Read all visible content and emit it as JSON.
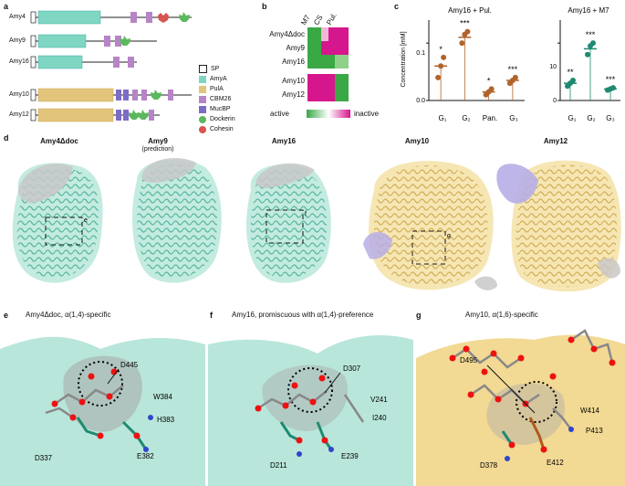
{
  "panels": {
    "a": "a",
    "b": "b",
    "c": "c",
    "d": "d",
    "e": "e",
    "f": "f",
    "g": "g"
  },
  "panel_a": {
    "proteins": [
      "Amy4",
      "Amy9",
      "Amy16",
      "Amy10",
      "Amy12"
    ],
    "legend": [
      {
        "label": "SP",
        "color": "#ffffff"
      },
      {
        "label": "AmyA",
        "color": "#7fd6c2"
      },
      {
        "label": "PulA",
        "color": "#e2c57a"
      },
      {
        "label": "CBM26",
        "color": "#b784c7"
      },
      {
        "label": "MucBP",
        "color": "#7e6cc4"
      },
      {
        "label": "Dockerin",
        "color": "#5cb85c"
      },
      {
        "label": "Cohesin",
        "color": "#d9534f"
      }
    ]
  },
  "panel_b": {
    "columns": [
      "M7",
      "CS",
      "Pul."
    ],
    "rows_top": [
      "Amy4Δdoc",
      "Amy9",
      "Amy16"
    ],
    "rows_bottom": [
      "Amy10",
      "Amy12"
    ],
    "scale_left": "active",
    "scale_right": "inactive"
  },
  "chart_data": [
    {
      "type": "bar",
      "title": "Amy16 + Pul.",
      "ylabel": "Concentration [mM]",
      "categories": [
        "G1",
        "G2",
        "Pan.",
        "G3"
      ],
      "values": [
        0.06,
        0.11,
        0.015,
        0.035
      ],
      "points": [
        [
          0.04,
          0.06,
          0.075
        ],
        [
          0.1,
          0.115,
          0.12
        ],
        [
          0.01,
          0.015,
          0.02
        ],
        [
          0.03,
          0.035,
          0.04
        ]
      ],
      "significance": [
        "*",
        "***",
        "*",
        "***"
      ],
      "yticks": [
        0.0,
        0.1
      ],
      "ylim": [
        0,
        0.14
      ],
      "color": "#b0642a"
    },
    {
      "type": "bar",
      "title": "Amy16 + M7",
      "ylabel": "",
      "categories": [
        "G1",
        "G2",
        "G3"
      ],
      "values": [
        3,
        9,
        2
      ],
      "points": [
        [
          2.5,
          3,
          3.5
        ],
        [
          8,
          9.5,
          10
        ],
        [
          1.8,
          2,
          2.2
        ]
      ],
      "significance": [
        "**",
        "***",
        "***"
      ],
      "yticks": [
        0,
        10
      ],
      "ylim": [
        0,
        14
      ],
      "color": "#1e8a72"
    }
  ],
  "panel_c": {
    "axis_labels": [
      "0.0",
      "0.1",
      "0",
      "10"
    ],
    "xlabels_1": [
      "G₁",
      "G₂",
      "Pan.",
      "G₃"
    ],
    "xlabels_2": [
      "G₁",
      "G₂",
      "G₃"
    ]
  },
  "panel_d": {
    "structures": [
      {
        "title": "Amy4Δdoc",
        "sub": ""
      },
      {
        "title": "Amy9",
        "sub": "(prediction)"
      },
      {
        "title": "Amy16",
        "sub": ""
      },
      {
        "title": "Amy10",
        "sub": ""
      },
      {
        "title": "Amy12",
        "sub": ""
      }
    ],
    "inset_labels": [
      "e",
      "f",
      "g"
    ]
  },
  "panel_e": {
    "title": "Amy4Δdoc, α(1,4)-specific",
    "residues": [
      "D445",
      "W384",
      "H383",
      "E382",
      "D337"
    ]
  },
  "panel_f": {
    "title": "Amy16, promiscuous with α(1,4)-preference",
    "residues": [
      "D307",
      "V241",
      "I240",
      "E239",
      "D211"
    ]
  },
  "panel_g": {
    "title": "Amy10, α(1,6)-specific",
    "residues": [
      "D495",
      "W414",
      "P413",
      "E412",
      "D378"
    ]
  },
  "colors": {
    "teal": "#7fd6c2",
    "gold": "#e8c876",
    "green": "#3aa845",
    "magenta": "#d6168c",
    "pink": "#f0b8d6"
  }
}
